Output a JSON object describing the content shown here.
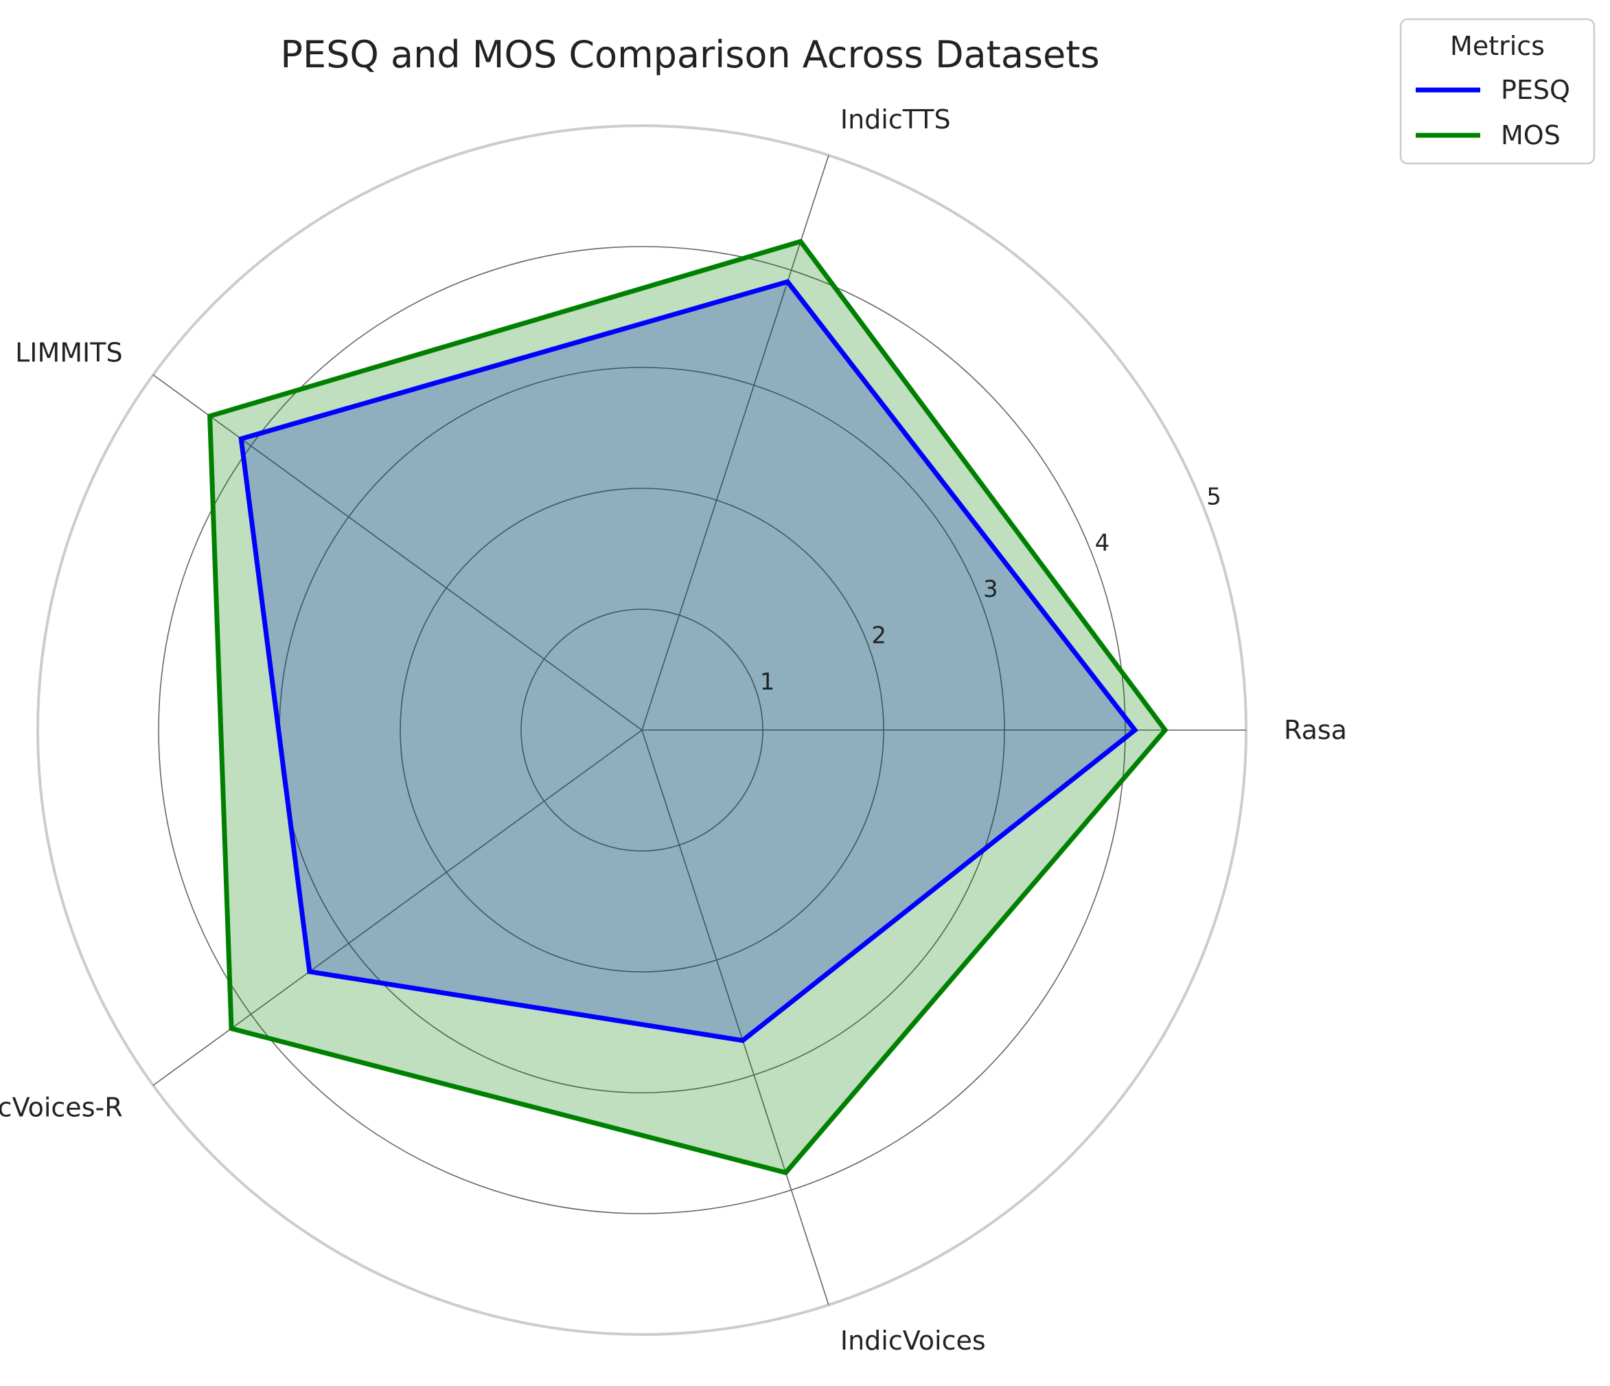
{
  "chart_data": {
    "type": "radar",
    "title": "PESQ and MOS Comparison Across Datasets",
    "categories": [
      "Rasa",
      "IndicTTS",
      "LIMMITS",
      "IndicVoices-R",
      "IndicVoices"
    ],
    "radial_ticks": [
      "1",
      "2",
      "3",
      "4",
      "5"
    ],
    "rlim": [
      0,
      5
    ],
    "grid": true,
    "legend": {
      "title": "Metrics",
      "placement": "top-right outside"
    },
    "series": [
      {
        "name": "PESQ",
        "values": [
          4.08,
          3.9,
          4.1,
          3.4,
          2.7
        ],
        "color": "#0000ff",
        "fill": "#0000ff"
      },
      {
        "name": "MOS",
        "values": [
          4.33,
          4.25,
          4.42,
          4.2,
          3.85
        ],
        "color": "#008000",
        "fill": "#008000"
      }
    ]
  }
}
